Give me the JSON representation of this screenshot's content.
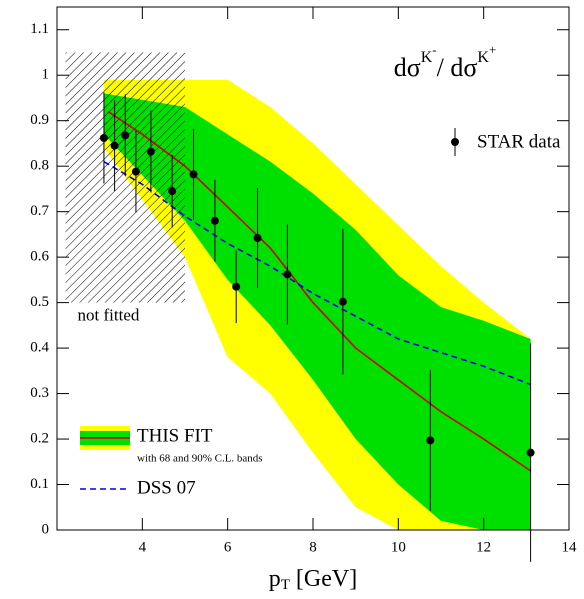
{
  "chart_data": {
    "type": "line",
    "title": [
      "dσ",
      "K",
      "-",
      "/ dσ",
      "K",
      "+"
    ],
    "x_label": [
      "p",
      "T",
      " [GeV]"
    ],
    "xlim": [
      2,
      14
    ],
    "ylim": [
      0,
      1.15
    ],
    "xticks": [
      4,
      6,
      8,
      10,
      12,
      14
    ],
    "yticks": [
      0,
      0.1,
      0.2,
      0.3,
      0.4,
      0.5,
      0.6,
      0.7,
      0.8,
      0.9,
      1,
      1.1
    ],
    "hatch": {
      "label": "not fitted",
      "xlim": [
        2.2,
        5
      ],
      "ylim": [
        0.5,
        1.05
      ]
    },
    "bands": {
      "label": "with 68 and 90% C.L. bands",
      "x": [
        3.1,
        5,
        6,
        7,
        8,
        9,
        10,
        11,
        12,
        13.1
      ],
      "cl90": {
        "color": "#ffff00",
        "upper": [
          0.99,
          0.99,
          0.99,
          0.93,
          0.85,
          0.76,
          0.67,
          0.58,
          0.5,
          0.42
        ],
        "lower": [
          0.84,
          0.6,
          0.38,
          0.3,
          0.17,
          0.05,
          0,
          0,
          0,
          0
        ]
      },
      "cl68": {
        "color": "#00e000",
        "upper": [
          0.96,
          0.93,
          0.87,
          0.81,
          0.74,
          0.66,
          0.56,
          0.49,
          0.46,
          0.42
        ],
        "lower": [
          0.87,
          0.68,
          0.55,
          0.45,
          0.33,
          0.2,
          0.1,
          0.02,
          0,
          0
        ]
      }
    },
    "series": [
      {
        "name": "THIS FIT",
        "color": "#cc0000",
        "x": [
          3.2,
          4,
          5,
          6,
          7,
          8,
          9,
          10,
          11,
          12,
          13.1
        ],
        "values": [
          0.92,
          0.87,
          0.8,
          0.71,
          0.62,
          0.5,
          0.4,
          0.33,
          0.26,
          0.2,
          0.13
        ]
      },
      {
        "name": "DSS 07",
        "color": "#0000ee",
        "dash": true,
        "x": [
          3.1,
          4,
          5,
          6,
          7,
          8,
          9,
          10,
          11,
          12,
          13.1
        ],
        "values": [
          0.81,
          0.76,
          0.69,
          0.63,
          0.58,
          0.52,
          0.47,
          0.42,
          0.39,
          0.36,
          0.32
        ]
      },
      {
        "name": "STAR data",
        "type": "scatter",
        "color": "#000000",
        "x": [
          3.1,
          3.35,
          3.6,
          3.85,
          4.2,
          4.7,
          5.2,
          5.7,
          6.2,
          6.7,
          7.4,
          8.7,
          10.75,
          13.1
        ],
        "values": [
          0.862,
          0.845,
          0.868,
          0.788,
          0.832,
          0.745,
          0.782,
          0.68,
          0.535,
          0.642,
          0.562,
          0.502,
          0.197,
          0.17
        ],
        "errors": [
          0.1,
          0.1,
          0.09,
          0.09,
          0.09,
          0.08,
          0.1,
          0.09,
          0.08,
          0.11,
          0.11,
          0.16,
          0.155,
          0.24
        ]
      }
    ]
  }
}
